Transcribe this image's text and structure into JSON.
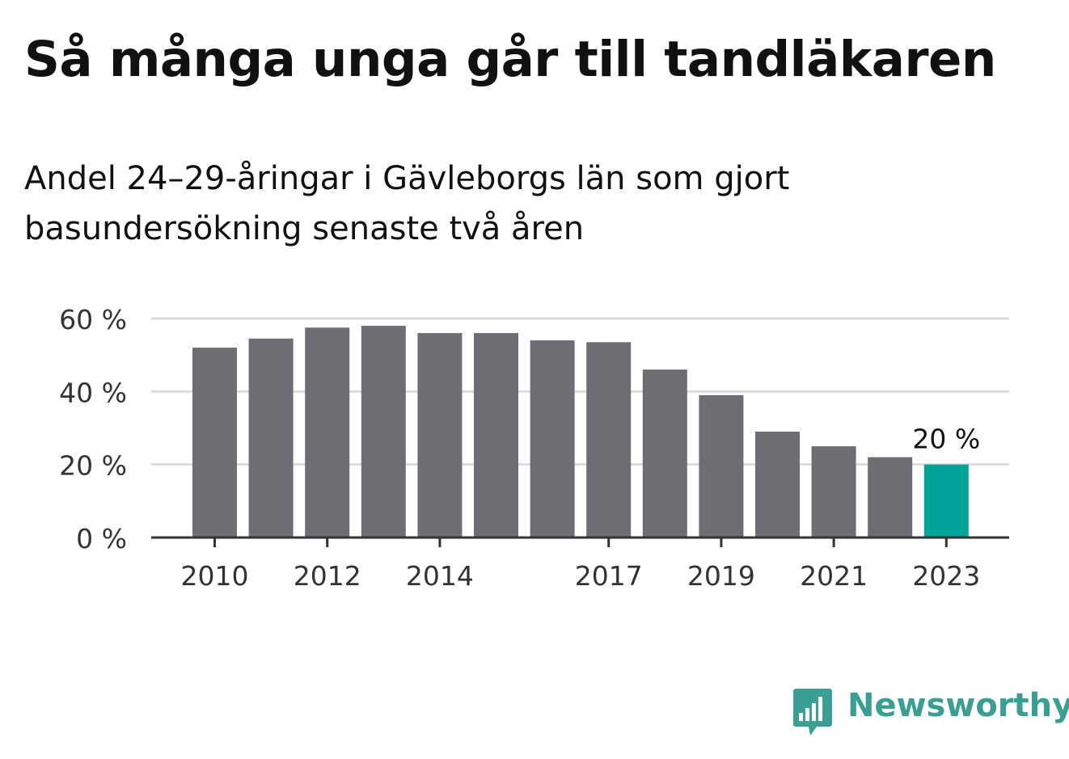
{
  "title": "Så många unga går till tandläkaren",
  "subtitle": "Andel 24–29-åringar i Gävleborgs län som gjort basundersökning senaste två åren",
  "brand": {
    "name": "Newsworthy",
    "color": "#3a9e93",
    "icon": "bar-chart-speech-bubble-icon"
  },
  "chart_data": {
    "type": "bar",
    "categories": [
      2010,
      2011,
      2012,
      2013,
      2014,
      2015,
      2016,
      2017,
      2018,
      2019,
      2020,
      2021,
      2022,
      2023
    ],
    "values": [
      52,
      54.5,
      57.5,
      58,
      56,
      56,
      54,
      53.5,
      46,
      39,
      29,
      25,
      22,
      20
    ],
    "x_tick_labels": [
      "2010",
      "2012",
      "2014",
      "2017",
      "2019",
      "2021",
      "2023"
    ],
    "y_ticks": [
      {
        "value": 0,
        "label": "0 %"
      },
      {
        "value": 20,
        "label": "20 %"
      },
      {
        "value": 40,
        "label": "40 %"
      },
      {
        "value": 60,
        "label": "60 %"
      }
    ],
    "ylim": [
      0,
      60
    ],
    "grid": true,
    "highlight": {
      "category": 2023,
      "label": "20 %",
      "color": "#00a39a"
    },
    "bar_color": "#6d6d74"
  }
}
